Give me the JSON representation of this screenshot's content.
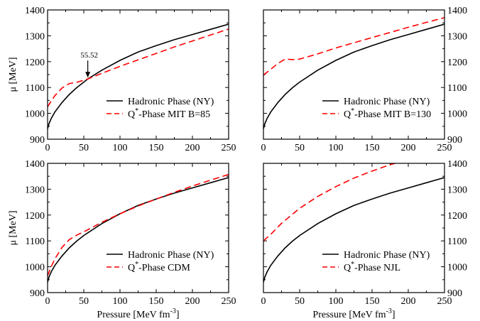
{
  "chart_data": [
    {
      "type": "line",
      "panel": "top-left",
      "ylabel": "μ [MeV]",
      "xlim": [
        0,
        250
      ],
      "ylim": [
        900,
        1400
      ],
      "xticks": [
        0,
        50,
        100,
        150,
        200,
        250
      ],
      "yticks": [
        900,
        1000,
        1100,
        1200,
        1300,
        1400
      ],
      "ytick_side": "left",
      "legend_position": "bottom-right",
      "series": [
        {
          "name": "Hadronic Phase (NY)",
          "color": "#000000",
          "dash": "solid",
          "x": [
            0,
            2,
            5,
            10,
            20,
            30,
            40,
            50,
            55.52,
            75,
            100,
            125,
            150,
            175,
            200,
            225,
            250
          ],
          "y": [
            940,
            960,
            980,
            1005,
            1042,
            1073,
            1099,
            1121,
            1133,
            1167,
            1205,
            1237,
            1262,
            1285,
            1305,
            1325,
            1345
          ]
        },
        {
          "name_prefix": "Q",
          "name_suffix": "-Phase MIT B=85",
          "color": "#ff0000",
          "dash": "dashed",
          "x": [
            0,
            5,
            10,
            20,
            30,
            40,
            50,
            55.52,
            75,
            100,
            125,
            150,
            175,
            200,
            225,
            250
          ],
          "y": [
            1025,
            1048,
            1068,
            1098,
            1115,
            1120,
            1128,
            1133,
            1155,
            1182,
            1207,
            1232,
            1257,
            1280,
            1303,
            1326
          ]
        }
      ],
      "annotation": {
        "text": "55.52",
        "x": 55.52,
        "y": 1133
      }
    },
    {
      "type": "line",
      "panel": "top-right",
      "xlim": [
        0,
        250
      ],
      "ylim": [
        900,
        1400
      ],
      "xticks": [
        0,
        50,
        100,
        150,
        200,
        250
      ],
      "yticks": [
        900,
        1000,
        1100,
        1200,
        1300,
        1400
      ],
      "ytick_side": "right",
      "legend_position": "bottom-right",
      "series": [
        {
          "name": "Hadronic Phase (NY)",
          "color": "#000000",
          "dash": "solid",
          "x": [
            0,
            2,
            5,
            10,
            20,
            30,
            40,
            50,
            75,
            100,
            125,
            150,
            175,
            200,
            225,
            250
          ],
          "y": [
            940,
            960,
            980,
            1005,
            1042,
            1073,
            1099,
            1121,
            1167,
            1205,
            1237,
            1262,
            1285,
            1305,
            1325,
            1345
          ]
        },
        {
          "name_prefix": "Q",
          "name_suffix": "-Phase MIT B=130",
          "color": "#ff0000",
          "dash": "dashed",
          "x": [
            0,
            10,
            20,
            30,
            40,
            50,
            75,
            100,
            125,
            150,
            175,
            200,
            225,
            250
          ],
          "y": [
            1148,
            1170,
            1193,
            1210,
            1208,
            1210,
            1230,
            1253,
            1273,
            1293,
            1313,
            1333,
            1352,
            1370
          ]
        }
      ]
    },
    {
      "type": "line",
      "panel": "bottom-left",
      "ylabel": "μ [MeV]",
      "xlabel_main": "Pressure [MeV fm",
      "xlabel_sup": "-3",
      "xlabel_end": "]",
      "xlim": [
        0,
        250
      ],
      "ylim": [
        900,
        1400
      ],
      "xticks": [
        0,
        50,
        100,
        150,
        200,
        250
      ],
      "yticks": [
        900,
        1000,
        1100,
        1200,
        1300,
        1400
      ],
      "ytick_side": "left",
      "legend_position": "bottom-right",
      "series": [
        {
          "name": "Hadronic Phase (NY)",
          "color": "#000000",
          "dash": "solid",
          "x": [
            0,
            2,
            5,
            10,
            20,
            30,
            40,
            50,
            75,
            100,
            125,
            150,
            175,
            200,
            225,
            250
          ],
          "y": [
            940,
            960,
            980,
            1005,
            1042,
            1073,
            1099,
            1121,
            1167,
            1205,
            1237,
            1262,
            1285,
            1305,
            1325,
            1345
          ]
        },
        {
          "name_prefix": "Q",
          "name_suffix": "-Phase CDM",
          "color": "#ff0000",
          "dash": "dashed",
          "x": [
            0,
            5,
            10,
            20,
            30,
            40,
            50,
            75,
            100,
            125,
            150,
            175,
            200,
            225,
            250
          ],
          "y": [
            965,
            1000,
            1030,
            1075,
            1105,
            1122,
            1135,
            1172,
            1205,
            1235,
            1262,
            1288,
            1312,
            1335,
            1357
          ]
        }
      ]
    },
    {
      "type": "line",
      "panel": "bottom-right",
      "xlabel_main": "Pressure [MeV fm",
      "xlabel_sup": "-3",
      "xlabel_end": "]",
      "xlim": [
        0,
        250
      ],
      "ylim": [
        900,
        1400
      ],
      "xticks": [
        0,
        50,
        100,
        150,
        200,
        250
      ],
      "yticks": [
        900,
        1000,
        1100,
        1200,
        1300,
        1400
      ],
      "ytick_side": "right",
      "legend_position": "bottom-right",
      "series": [
        {
          "name": "Hadronic Phase (NY)",
          "color": "#000000",
          "dash": "solid",
          "x": [
            0,
            2,
            5,
            10,
            20,
            30,
            40,
            50,
            75,
            100,
            125,
            150,
            175,
            200,
            225,
            250
          ],
          "y": [
            940,
            960,
            980,
            1005,
            1042,
            1073,
            1099,
            1121,
            1167,
            1205,
            1237,
            1262,
            1285,
            1305,
            1325,
            1345
          ]
        },
        {
          "name_prefix": "Q",
          "name_suffix": "-Phase NJL",
          "color": "#ff0000",
          "dash": "dashed",
          "x": [
            0,
            10,
            25,
            50,
            75,
            100,
            125,
            150,
            175,
            182
          ],
          "y": [
            1100,
            1125,
            1168,
            1226,
            1272,
            1310,
            1343,
            1370,
            1395,
            1400
          ]
        }
      ]
    }
  ],
  "legend_superscript": "*"
}
